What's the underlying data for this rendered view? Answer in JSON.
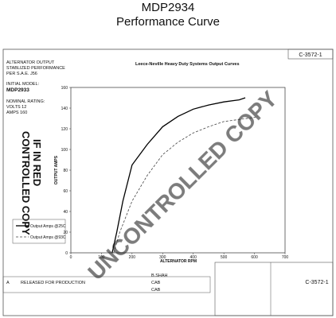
{
  "header": {
    "title": "MDP2934",
    "subtitle": "Performance Curve"
  },
  "document": {
    "info": [
      "ALTERNATOR OUTPUT",
      "STABLIZED PERFORMANCE",
      "PER S.A.E. J56"
    ],
    "model_label": "INITIAL MODEL:",
    "model": "MDP2933",
    "rating_label": "NOMINAL RATING:",
    "rating": [
      "VOLTS 12",
      "AMPS 160"
    ],
    "stamp": [
      "CONTROLLED COPY",
      "IF IN RED"
    ],
    "watermark": "UNCONTROLLED COPY",
    "doc_number": "C-3572-1",
    "revision": "A",
    "revision_text": "RELEASED FOR PRODUCTION",
    "signatures": [
      "B.SHAH",
      "CAB",
      "CAB"
    ]
  },
  "chart_data": {
    "type": "line",
    "title": "Leece-Neville Heavy Duty Systems Output Curves",
    "x_label": "ALTERNATOR RPM",
    "y_label": "OUTPUT AMPS",
    "xlim": [
      0,
      700
    ],
    "xticks": [
      0,
      100,
      200,
      300,
      400,
      500,
      600,
      700
    ],
    "ylim": [
      0,
      160
    ],
    "yticks": [
      0,
      20,
      40,
      60,
      80,
      100,
      120,
      140,
      160
    ],
    "grid": false,
    "series": [
      {
        "name": "Output Amps @25C",
        "color": "#000000",
        "dash": false,
        "x": [
          135,
          150,
          170,
          200,
          250,
          300,
          350,
          400,
          450,
          500,
          550,
          570
        ],
        "values": [
          0,
          20,
          50,
          85,
          105,
          122,
          132,
          139,
          143,
          146,
          148,
          150
        ]
      },
      {
        "name": "Output Amps @93C",
        "color": "#444444",
        "dash": true,
        "x": [
          140,
          160,
          200,
          250,
          300,
          350,
          400,
          450,
          500,
          550,
          600,
          610
        ],
        "values": [
          0,
          20,
          50,
          75,
          95,
          107,
          116,
          122,
          127,
          129,
          131,
          132
        ]
      }
    ]
  }
}
